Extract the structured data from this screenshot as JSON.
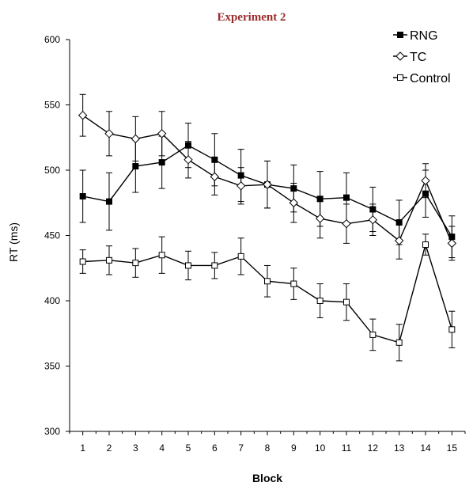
{
  "chart_data": {
    "type": "line",
    "title": "Experiment 2",
    "xlabel": "Block",
    "ylabel": "RT (ms)",
    "x": [
      1,
      2,
      3,
      4,
      5,
      6,
      7,
      8,
      9,
      10,
      11,
      12,
      13,
      14,
      15
    ],
    "ylim": [
      300,
      600
    ],
    "yticks": [
      300,
      350,
      400,
      450,
      500,
      550,
      600
    ],
    "grid": false,
    "legend_position": "top-right",
    "series": [
      {
        "name": "RNG",
        "marker": "filled-square",
        "color": "#000000",
        "values": [
          480,
          476,
          503,
          506,
          519,
          508,
          496,
          489,
          486,
          478,
          479,
          470,
          460,
          482,
          449
        ],
        "error": [
          20,
          22,
          20,
          20,
          17,
          20,
          20,
          18,
          18,
          21,
          19,
          17,
          17,
          18,
          16
        ]
      },
      {
        "name": "TC",
        "marker": "open-diamond",
        "color": "#000000",
        "values": [
          542,
          528,
          524,
          528,
          508,
          495,
          488,
          489,
          475,
          463,
          459,
          462,
          446,
          492,
          444
        ],
        "error": [
          16,
          17,
          17,
          17,
          14,
          14,
          14,
          18,
          15,
          15,
          15,
          12,
          14,
          13,
          13
        ]
      },
      {
        "name": "Control",
        "marker": "open-square",
        "color": "#000000",
        "values": [
          430,
          431,
          429,
          435,
          427,
          427,
          434,
          415,
          413,
          400,
          399,
          374,
          368,
          443,
          378
        ],
        "error": [
          9,
          11,
          11,
          14,
          11,
          10,
          14,
          12,
          12,
          13,
          14,
          12,
          14,
          8,
          14
        ]
      }
    ]
  }
}
